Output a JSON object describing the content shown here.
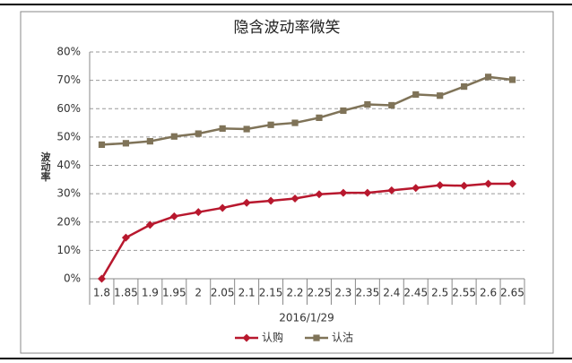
{
  "chart_data": {
    "type": "line",
    "title": "隐含波动率微笑",
    "x_label": "2016/1/29",
    "y_label": "波动率",
    "categories": [
      "1.8",
      "1.85",
      "1.9",
      "1.95",
      "2",
      "2.05",
      "2.1",
      "2.15",
      "2.2",
      "2.25",
      "2.3",
      "2.35",
      "2.4",
      "2.45",
      "2.5",
      "2.55",
      "2.6",
      "2.65"
    ],
    "series": [
      {
        "name": "认购",
        "color": "#b8182e",
        "marker": "diamond",
        "values": [
          0,
          14.5,
          19,
          22,
          23.5,
          25,
          26.8,
          27.5,
          28.3,
          29.8,
          30.3,
          30.3,
          31.2,
          32,
          33,
          32.8,
          33.5,
          33.5
        ]
      },
      {
        "name": "认沽",
        "color": "#7f7358",
        "marker": "square",
        "values": [
          47.3,
          47.8,
          48.5,
          50.2,
          51.2,
          53,
          52.8,
          54.3,
          55,
          56.8,
          59.3,
          61.5,
          61.2,
          65,
          64.6,
          67.8,
          71.2,
          70.2
        ]
      }
    ],
    "ylim": [
      0,
      80
    ],
    "yticks": [
      {
        "value": 0,
        "label": "0%"
      },
      {
        "value": 10,
        "label": "10%"
      },
      {
        "value": 20,
        "label": "20%"
      },
      {
        "value": 30,
        "label": "30%"
      },
      {
        "value": 40,
        "label": "40%"
      },
      {
        "value": 50,
        "label": "50%"
      },
      {
        "value": 60,
        "label": "60%"
      },
      {
        "value": 70,
        "label": "70%"
      },
      {
        "value": 80,
        "label": "80%"
      }
    ],
    "grid": true,
    "legend": "bottom"
  }
}
